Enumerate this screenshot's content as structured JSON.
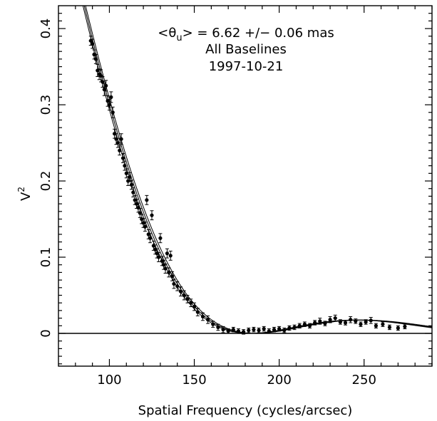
{
  "chart_data": {
    "type": "scatter",
    "title": "",
    "annotations": {
      "diameter_prefix": "<θ",
      "diameter_subscript": "u",
      "diameter_suffix": "> = 6.62 +/− 0.06 mas",
      "baselines": "All Baselines",
      "date": "1997-10-21"
    },
    "xlabel": "Spatial Frequency (cycles/arcsec)",
    "ylabel_base": "V",
    "ylabel_sup": "2",
    "xlim": [
      70,
      290
    ],
    "ylim": [
      -0.043,
      0.43
    ],
    "xticks": [
      100,
      150,
      200,
      250
    ],
    "yticks": [
      0,
      0.1,
      0.2,
      0.3,
      0.4
    ],
    "xtick_labels": [
      "100",
      "150",
      "200",
      "250"
    ],
    "ytick_labels": [
      "0",
      "0.1",
      "0.2",
      "0.3",
      "0.4"
    ],
    "grid": false,
    "zero_line": true,
    "model": {
      "diameter_mas": 6.62,
      "uncertainty_mas": 0.06,
      "x_range": [
        70,
        290
      ]
    },
    "points": [
      [
        89,
        0.384,
        0.006
      ],
      [
        90,
        0.38,
        0.006
      ],
      [
        91,
        0.366,
        0.006
      ],
      [
        92,
        0.36,
        0.006
      ],
      [
        93,
        0.345,
        0.008
      ],
      [
        94,
        0.34,
        0.007
      ],
      [
        95,
        0.338,
        0.008
      ],
      [
        96,
        0.33,
        0.007
      ],
      [
        97,
        0.32,
        0.008
      ],
      [
        98,
        0.325,
        0.007
      ],
      [
        99,
        0.305,
        0.007
      ],
      [
        100,
        0.3,
        0.007
      ],
      [
        101,
        0.31,
        0.007
      ],
      [
        102,
        0.29,
        0.007
      ],
      [
        103,
        0.262,
        0.006
      ],
      [
        104,
        0.255,
        0.007
      ],
      [
        105,
        0.25,
        0.006
      ],
      [
        106,
        0.24,
        0.006
      ],
      [
        107,
        0.255,
        0.007
      ],
      [
        108,
        0.23,
        0.006
      ],
      [
        109,
        0.22,
        0.006
      ],
      [
        110,
        0.21,
        0.006
      ],
      [
        111,
        0.2,
        0.006
      ],
      [
        112,
        0.205,
        0.006
      ],
      [
        113,
        0.195,
        0.006
      ],
      [
        114,
        0.185,
        0.006
      ],
      [
        115,
        0.175,
        0.006
      ],
      [
        116,
        0.17,
        0.006
      ],
      [
        117,
        0.165,
        0.006
      ],
      [
        118,
        0.158,
        0.006
      ],
      [
        119,
        0.15,
        0.006
      ],
      [
        120,
        0.145,
        0.006
      ],
      [
        121,
        0.14,
        0.006
      ],
      [
        122,
        0.175,
        0.006
      ],
      [
        123,
        0.13,
        0.006
      ],
      [
        124,
        0.125,
        0.006
      ],
      [
        125,
        0.155,
        0.006
      ],
      [
        126,
        0.115,
        0.006
      ],
      [
        127,
        0.11,
        0.006
      ],
      [
        128,
        0.105,
        0.006
      ],
      [
        129,
        0.1,
        0.006
      ],
      [
        130,
        0.125,
        0.006
      ],
      [
        131,
        0.095,
        0.006
      ],
      [
        132,
        0.09,
        0.006
      ],
      [
        133,
        0.085,
        0.006
      ],
      [
        134,
        0.105,
        0.006
      ],
      [
        135,
        0.08,
        0.006
      ],
      [
        136,
        0.102,
        0.006
      ],
      [
        137,
        0.075,
        0.006
      ],
      [
        138,
        0.065,
        0.006
      ],
      [
        140,
        0.062,
        0.006
      ],
      [
        142,
        0.055,
        0.006
      ],
      [
        144,
        0.05,
        0.006
      ],
      [
        146,
        0.045,
        0.005
      ],
      [
        148,
        0.04,
        0.005
      ],
      [
        150,
        0.035,
        0.005
      ],
      [
        152,
        0.028,
        0.005
      ],
      [
        155,
        0.022,
        0.005
      ],
      [
        158,
        0.018,
        0.005
      ],
      [
        161,
        0.012,
        0.004
      ],
      [
        164,
        0.008,
        0.004
      ],
      [
        167,
        0.005,
        0.004
      ],
      [
        170,
        0.003,
        0.003
      ],
      [
        173,
        0.005,
        0.003
      ],
      [
        176,
        0.003,
        0.003
      ],
      [
        179,
        0.002,
        0.003
      ],
      [
        182,
        0.004,
        0.003
      ],
      [
        185,
        0.005,
        0.003
      ],
      [
        188,
        0.004,
        0.003
      ],
      [
        191,
        0.006,
        0.003
      ],
      [
        194,
        0.003,
        0.003
      ],
      [
        197,
        0.005,
        0.003
      ],
      [
        200,
        0.006,
        0.003
      ],
      [
        203,
        0.004,
        0.003
      ],
      [
        206,
        0.007,
        0.003
      ],
      [
        209,
        0.008,
        0.003
      ],
      [
        212,
        0.01,
        0.003
      ],
      [
        215,
        0.012,
        0.003
      ],
      [
        218,
        0.01,
        0.003
      ],
      [
        221,
        0.014,
        0.003
      ],
      [
        224,
        0.016,
        0.004
      ],
      [
        227,
        0.013,
        0.003
      ],
      [
        230,
        0.018,
        0.004
      ],
      [
        233,
        0.02,
        0.004
      ],
      [
        236,
        0.015,
        0.003
      ],
      [
        239,
        0.014,
        0.003
      ],
      [
        242,
        0.018,
        0.004
      ],
      [
        245,
        0.016,
        0.003
      ],
      [
        248,
        0.012,
        0.003
      ],
      [
        251,
        0.015,
        0.003
      ],
      [
        254,
        0.017,
        0.004
      ],
      [
        257,
        0.01,
        0.003
      ],
      [
        261,
        0.012,
        0.003
      ],
      [
        265,
        0.008,
        0.003
      ],
      [
        270,
        0.007,
        0.003
      ],
      [
        274,
        0.009,
        0.003
      ]
    ]
  }
}
